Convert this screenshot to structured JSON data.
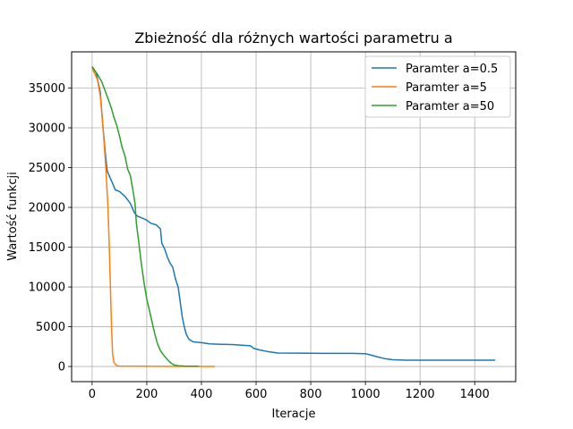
{
  "chart_data": {
    "type": "line",
    "title": "Zbieżność dla różnych wartości parametru a",
    "xlabel": "Iteracje",
    "ylabel": "Wartość funkcji",
    "xlim": [
      -75,
      1550
    ],
    "ylim": [
      -1900,
      39550
    ],
    "xticks": [
      0,
      200,
      400,
      600,
      800,
      1000,
      1200,
      1400
    ],
    "yticks": [
      0,
      5000,
      10000,
      15000,
      20000,
      25000,
      30000,
      35000
    ],
    "grid": true,
    "legend_position": "top-right",
    "series": [
      {
        "name": "Paramter a=0.5",
        "color": "#1f77b4",
        "points": [
          [
            0,
            37700
          ],
          [
            15,
            36900
          ],
          [
            30,
            34500
          ],
          [
            40,
            30000
          ],
          [
            48,
            27000
          ],
          [
            55,
            24600
          ],
          [
            65,
            23800
          ],
          [
            75,
            23000
          ],
          [
            85,
            22200
          ],
          [
            100,
            22000
          ],
          [
            120,
            21400
          ],
          [
            140,
            20500
          ],
          [
            155,
            19300
          ],
          [
            165,
            18900
          ],
          [
            180,
            18700
          ],
          [
            200,
            18400
          ],
          [
            215,
            18000
          ],
          [
            235,
            17800
          ],
          [
            250,
            17300
          ],
          [
            255,
            15500
          ],
          [
            265,
            14800
          ],
          [
            275,
            13800
          ],
          [
            285,
            13000
          ],
          [
            295,
            12500
          ],
          [
            305,
            11000
          ],
          [
            315,
            10000
          ],
          [
            330,
            6200
          ],
          [
            337,
            5000
          ],
          [
            345,
            4000
          ],
          [
            355,
            3400
          ],
          [
            370,
            3100
          ],
          [
            400,
            3000
          ],
          [
            430,
            2850
          ],
          [
            470,
            2800
          ],
          [
            520,
            2750
          ],
          [
            560,
            2650
          ],
          [
            580,
            2600
          ],
          [
            590,
            2300
          ],
          [
            610,
            2100
          ],
          [
            640,
            1900
          ],
          [
            680,
            1700
          ],
          [
            750,
            1680
          ],
          [
            850,
            1650
          ],
          [
            950,
            1650
          ],
          [
            1000,
            1620
          ],
          [
            1025,
            1400
          ],
          [
            1045,
            1200
          ],
          [
            1070,
            1000
          ],
          [
            1100,
            850
          ],
          [
            1150,
            800
          ],
          [
            1250,
            800
          ],
          [
            1350,
            800
          ],
          [
            1475,
            800
          ]
        ]
      },
      {
        "name": "Paramter a=5",
        "color": "#ff7f0e",
        "points": [
          [
            0,
            37500
          ],
          [
            10,
            36800
          ],
          [
            20,
            36000
          ],
          [
            30,
            34000
          ],
          [
            40,
            30000
          ],
          [
            50,
            25000
          ],
          [
            58,
            20000
          ],
          [
            63,
            15000
          ],
          [
            67,
            10000
          ],
          [
            71,
            5000
          ],
          [
            75,
            1500
          ],
          [
            80,
            500
          ],
          [
            90,
            100
          ],
          [
            100,
            50
          ],
          [
            150,
            30
          ],
          [
            250,
            20
          ],
          [
            350,
            10
          ],
          [
            450,
            10
          ]
        ]
      },
      {
        "name": "Paramter a=50",
        "color": "#2ca02c",
        "points": [
          [
            0,
            37700
          ],
          [
            10,
            37200
          ],
          [
            20,
            36700
          ],
          [
            35,
            35800
          ],
          [
            50,
            34400
          ],
          [
            60,
            33500
          ],
          [
            70,
            32500
          ],
          [
            80,
            31300
          ],
          [
            90,
            30300
          ],
          [
            100,
            29000
          ],
          [
            110,
            27500
          ],
          [
            120,
            26500
          ],
          [
            130,
            24800
          ],
          [
            140,
            24000
          ],
          [
            150,
            22000
          ],
          [
            157,
            20500
          ],
          [
            162,
            18000
          ],
          [
            170,
            15800
          ],
          [
            180,
            13000
          ],
          [
            190,
            10500
          ],
          [
            200,
            8500
          ],
          [
            210,
            7000
          ],
          [
            220,
            5500
          ],
          [
            230,
            4000
          ],
          [
            240,
            2800
          ],
          [
            250,
            2000
          ],
          [
            260,
            1500
          ],
          [
            270,
            1100
          ],
          [
            280,
            700
          ],
          [
            290,
            400
          ],
          [
            300,
            200
          ],
          [
            315,
            100
          ],
          [
            340,
            50
          ],
          [
            390,
            30
          ]
        ]
      }
    ]
  }
}
